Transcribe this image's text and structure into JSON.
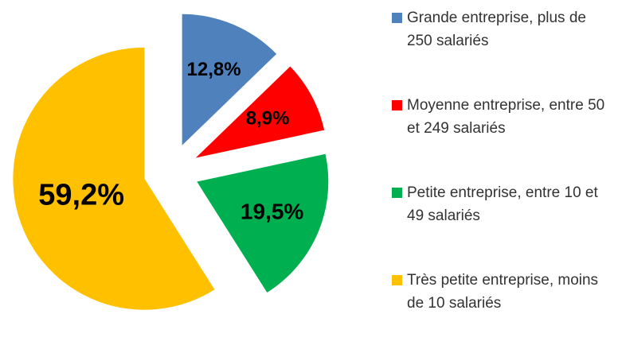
{
  "chart_data": {
    "type": "pie",
    "categories": [
      "Grande entreprise, plus de 250 salariés",
      "Moyenne entreprise, entre 50 et 249 salariés",
      "Petite entreprise, entre 10 et 49 salariés",
      "Très petite entreprise, moins de 10 salariés"
    ],
    "values": [
      12.8,
      8.9,
      19.5,
      59.2
    ],
    "value_labels": [
      "12,8%",
      "8,9%",
      "19,5%",
      "59,2%"
    ],
    "colors": [
      "#4f81bd",
      "#ff0000",
      "#00b050",
      "#ffc000"
    ],
    "legend": "right"
  }
}
